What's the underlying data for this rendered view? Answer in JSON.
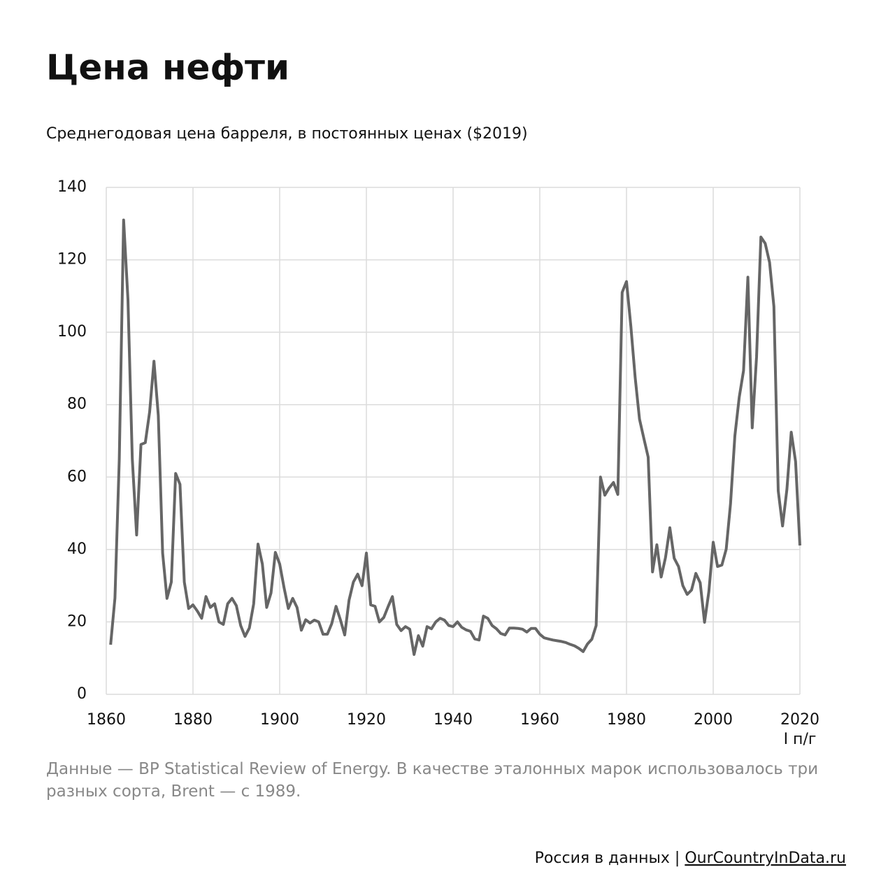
{
  "chart_data": {
    "type": "line",
    "title": "Цена нефти",
    "subtitle": "Среднегодовая цена барреля, в постоянных ценах ($2019)",
    "note": "Данные — BP Statistical Review of Energy. В качестве эталонных марок использовалось три разных сорта, Brent — с 1989.",
    "annotation": "I п/г",
    "footer": {
      "brand": "Россия в данных",
      "separator": "|",
      "site": "OurCountryInData.ru"
    },
    "color": "#666666",
    "grid": true,
    "xlim": [
      1860,
      2020
    ],
    "xticks": [
      1860,
      1880,
      1900,
      1920,
      1940,
      1960,
      1980,
      2000,
      2020
    ],
    "ylim": [
      0,
      140
    ],
    "yticks": [
      0,
      20,
      40,
      60,
      80,
      100,
      120,
      140
    ],
    "x": [
      1861,
      1862,
      1863,
      1864,
      1865,
      1866,
      1867,
      1868,
      1869,
      1870,
      1871,
      1872,
      1873,
      1874,
      1875,
      1876,
      1877,
      1878,
      1879,
      1880,
      1881,
      1882,
      1883,
      1884,
      1885,
      1886,
      1887,
      1888,
      1889,
      1890,
      1891,
      1892,
      1893,
      1894,
      1895,
      1896,
      1897,
      1898,
      1899,
      1900,
      1901,
      1902,
      1903,
      1904,
      1905,
      1906,
      1907,
      1908,
      1909,
      1910,
      1911,
      1912,
      1913,
      1914,
      1915,
      1916,
      1917,
      1918,
      1919,
      1920,
      1921,
      1922,
      1923,
      1924,
      1925,
      1926,
      1927,
      1928,
      1929,
      1930,
      1931,
      1932,
      1933,
      1934,
      1935,
      1936,
      1937,
      1938,
      1939,
      1940,
      1941,
      1942,
      1943,
      1944,
      1945,
      1946,
      1947,
      1948,
      1949,
      1950,
      1951,
      1952,
      1953,
      1954,
      1955,
      1956,
      1957,
      1958,
      1959,
      1960,
      1961,
      1962,
      1963,
      1964,
      1965,
      1966,
      1967,
      1968,
      1969,
      1970,
      1971,
      1972,
      1973,
      1974,
      1975,
      1976,
      1977,
      1978,
      1979,
      1980,
      1981,
      1982,
      1983,
      1984,
      1985,
      1986,
      1987,
      1988,
      1989,
      1990,
      1991,
      1992,
      1993,
      1994,
      1995,
      1996,
      1997,
      1998,
      1999,
      2000,
      2001,
      2002,
      2003,
      2004,
      2005,
      2006,
      2007,
      2008,
      2009,
      2010,
      2011,
      2012,
      2013,
      2014,
      2015,
      2016,
      2017,
      2018,
      2019,
      2020
    ],
    "values": [
      13.7,
      26.6,
      65,
      131,
      109,
      65,
      44,
      69,
      69.5,
      78,
      92,
      77,
      39,
      26.5,
      31,
      61,
      58,
      31,
      23.7,
      24.7,
      23,
      21,
      27,
      24,
      25,
      20,
      19.3,
      25,
      26.5,
      24.5,
      19,
      16,
      18.3,
      25,
      41.5,
      36,
      24,
      28,
      39.2,
      36,
      29.5,
      23.7,
      26.5,
      24,
      17.7,
      20.6,
      19.7,
      20.5,
      20,
      16.6,
      16.6,
      19.5,
      24.3,
      20.6,
      16.4,
      26,
      31,
      33.2,
      30,
      39,
      24.7,
      24.3,
      20,
      21.2,
      24.2,
      27,
      19.3,
      17.6,
      18.7,
      18,
      11,
      16.2,
      13.3,
      18.7,
      18.1,
      20,
      21,
      20.5,
      19,
      18.7,
      20,
      18.5,
      17.8,
      17.4,
      15.3,
      15,
      21.6,
      21,
      19,
      18.1,
      16.8,
      16.4,
      18.3,
      18.3,
      18.2,
      18,
      17.2,
      18.2,
      18.2,
      16.6,
      15.6,
      15.3,
      15,
      14.8,
      14.6,
      14.3,
      13.8,
      13.4,
      12.7,
      11.8,
      13.9,
      15.2,
      19,
      60,
      55,
      57,
      58.5,
      55.2,
      111,
      114,
      101.7,
      87.5,
      76,
      70.7,
      65.5,
      33.8,
      41.3,
      32.4,
      37.8,
      46,
      37.6,
      35.3,
      30,
      27.6,
      28.8,
      33.4,
      30.8,
      19.9,
      28.4,
      42,
      35.3,
      35.7,
      40.1,
      52.7,
      71.4,
      82,
      89.4,
      115.2,
      73.6,
      93.2,
      126.3,
      124.5,
      119.3,
      107.1,
      56.2,
      46.5,
      56.6,
      72.4,
      64.3,
      41.1
    ]
  }
}
